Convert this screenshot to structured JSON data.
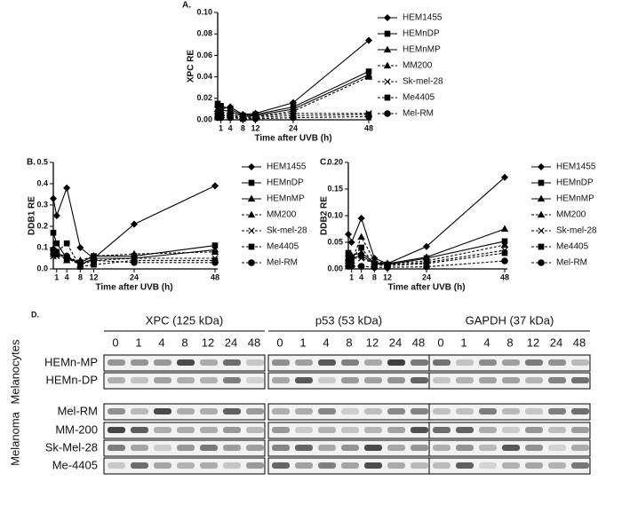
{
  "chart_data": [
    {
      "type": "line",
      "panel": "A.",
      "ylabel": "XPC RE",
      "xlabel": "Time after UVB (h)",
      "x": [
        0,
        1,
        4,
        8,
        12,
        24,
        48
      ],
      "xlim": [
        0,
        48
      ],
      "xticks": [
        1,
        4,
        8,
        12,
        24,
        48
      ],
      "ylim": [
        0,
        0.1
      ],
      "yticks": [
        {
          "value": 0,
          "label": "0.00"
        },
        0.02,
        0.04,
        0.06,
        0.08,
        {
          "value": 0.1,
          "label": "0.10"
        }
      ],
      "series": [
        {
          "name": "HEM1455",
          "color": "#000000",
          "marker": "diamond",
          "dashed": false,
          "values": [
            0.012,
            0.01,
            0.012,
            0.005,
            0.006,
            0.016,
            0.074
          ]
        },
        {
          "name": "HEMnDP",
          "color": "#000000",
          "marker": "square",
          "dashed": false,
          "values": [
            0.015,
            0.013,
            0.01,
            0.004,
            0.005,
            0.012,
            0.045
          ]
        },
        {
          "name": "HEMnMP",
          "color": "#000000",
          "marker": "triangle",
          "dashed": false,
          "values": [
            0.01,
            0.009,
            0.008,
            0.003,
            0.004,
            0.01,
            0.042
          ]
        },
        {
          "name": "MM200",
          "color": "#000000",
          "marker": "triangle",
          "dashed": true,
          "values": [
            0.008,
            0.007,
            0.006,
            0.002,
            0.003,
            0.008,
            0.04
          ]
        },
        {
          "name": "Sk-mel-28",
          "color": "#000000",
          "marker": "cross",
          "dashed": true,
          "values": [
            0.006,
            0.005,
            0.004,
            0.002,
            0.003,
            0.006,
            0.006
          ]
        },
        {
          "name": "Me4405",
          "color": "#000000",
          "marker": "square",
          "dashed": true,
          "values": [
            0.004,
            0.004,
            0.003,
            0.001,
            0.002,
            0.004,
            0.005
          ]
        },
        {
          "name": "Mel-RM",
          "color": "#000000",
          "marker": "circle",
          "dashed": true,
          "values": [
            0.002,
            0.002,
            0.002,
            0.001,
            0.001,
            0.002,
            0.003
          ]
        }
      ]
    },
    {
      "type": "line",
      "panel": "B.",
      "ylabel": "DDB1 RE",
      "xlabel": "Time after UVB (h)",
      "x": [
        0,
        1,
        4,
        8,
        12,
        24,
        48
      ],
      "xlim": [
        0,
        48
      ],
      "xticks": [
        1,
        4,
        8,
        12,
        24,
        48
      ],
      "ylim": [
        0,
        0.5
      ],
      "yticks": [
        {
          "value": 0,
          "label": "0.0"
        },
        0.1,
        0.2,
        0.3,
        0.4,
        0.5
      ],
      "series": [
        {
          "name": "HEM1455",
          "color": "#000000",
          "marker": "diamond",
          "dashed": false,
          "values": [
            0.33,
            0.25,
            0.38,
            0.1,
            0.05,
            0.21,
            0.39
          ]
        },
        {
          "name": "HEMnDP",
          "color": "#000000",
          "marker": "square",
          "dashed": false,
          "values": [
            0.17,
            0.12,
            0.05,
            0.03,
            0.06,
            0.06,
            0.11
          ]
        },
        {
          "name": "HEMnMP",
          "color": "#000000",
          "marker": "triangle",
          "dashed": false,
          "values": [
            0.08,
            0.07,
            0.06,
            0.02,
            0.05,
            0.05,
            0.09
          ]
        },
        {
          "name": "MM200",
          "color": "#000000",
          "marker": "triangle",
          "dashed": true,
          "values": [
            0.07,
            0.08,
            0.04,
            0.04,
            0.06,
            0.07,
            0.08
          ]
        },
        {
          "name": "Sk-mel-28",
          "color": "#000000",
          "marker": "cross",
          "dashed": true,
          "values": [
            0.06,
            0.06,
            0.05,
            0.02,
            0.04,
            0.05,
            0.05
          ]
        },
        {
          "name": "Me4405",
          "color": "#000000",
          "marker": "square",
          "dashed": true,
          "values": [
            0.08,
            0.08,
            0.12,
            0.01,
            0.02,
            0.04,
            0.04
          ]
        },
        {
          "name": "Mel-RM",
          "color": "#000000",
          "marker": "circle",
          "dashed": true,
          "values": [
            0.09,
            0.07,
            0.06,
            0.03,
            0.04,
            0.03,
            0.03
          ]
        }
      ]
    },
    {
      "type": "line",
      "panel": "C.",
      "ylabel": "DDB2 RE",
      "xlabel": "Time after UVB (h)",
      "x": [
        0,
        1,
        4,
        8,
        12,
        24,
        48
      ],
      "xlim": [
        0,
        48
      ],
      "xticks": [
        1,
        4,
        8,
        12,
        24,
        48
      ],
      "ylim": [
        0,
        0.2
      ],
      "yticks": [
        {
          "value": 0,
          "label": "0.00"
        },
        0.05,
        {
          "value": 0.1,
          "label": "0.10"
        },
        0.15,
        {
          "value": 0.2,
          "label": "0.20"
        }
      ],
      "series": [
        {
          "name": "HEM1455",
          "color": "#000000",
          "marker": "diamond",
          "dashed": false,
          "values": [
            0.065,
            0.05,
            0.095,
            0.02,
            0.01,
            0.042,
            0.172
          ]
        },
        {
          "name": "HEMnDP",
          "color": "#000000",
          "marker": "square",
          "dashed": false,
          "values": [
            0.03,
            0.02,
            0.025,
            0.01,
            0.008,
            0.02,
            0.052
          ]
        },
        {
          "name": "HEMnMP",
          "color": "#000000",
          "marker": "triangle",
          "dashed": false,
          "values": [
            0.02,
            0.025,
            0.03,
            0.012,
            0.01,
            0.022,
            0.075
          ]
        },
        {
          "name": "MM200",
          "color": "#000000",
          "marker": "triangle",
          "dashed": true,
          "values": [
            0.015,
            0.015,
            0.06,
            0.015,
            0.01,
            0.015,
            0.045
          ]
        },
        {
          "name": "Sk-mel-28",
          "color": "#000000",
          "marker": "cross",
          "dashed": true,
          "values": [
            0.01,
            0.02,
            0.02,
            0.01,
            0.008,
            0.012,
            0.035
          ]
        },
        {
          "name": "Me4405",
          "color": "#000000",
          "marker": "square",
          "dashed": true,
          "values": [
            0.02,
            0.02,
            0.04,
            0.008,
            0.006,
            0.01,
            0.03
          ]
        },
        {
          "name": "Mel-RM",
          "color": "#000000",
          "marker": "circle",
          "dashed": true,
          "values": [
            0.005,
            0.005,
            0.005,
            0.003,
            0.003,
            0.004,
            0.015
          ]
        }
      ]
    }
  ],
  "blot": {
    "panel": "D.",
    "panels": [
      {
        "title": "XPC (125 kDa)",
        "lanes": [
          "0",
          "1",
          "4",
          "8",
          "12",
          "24",
          "48"
        ]
      },
      {
        "title": "p53 (53 kDa)",
        "lanes": [
          "0",
          "1",
          "4",
          "8",
          "12",
          "24",
          "48"
        ]
      },
      {
        "title": "GAPDH (37 kDa)",
        "lanes": [
          "0",
          "1",
          "4",
          "8",
          "12",
          "24",
          "48"
        ]
      }
    ],
    "groups": [
      {
        "name": "Melanocytes",
        "rows": [
          "HEMn-MP",
          "HEMn-DP"
        ]
      },
      {
        "name": "Melanoma",
        "rows": [
          "Mel-RM",
          "MM-200",
          "Sk-Mel-28",
          "Me-4405"
        ]
      }
    ]
  }
}
